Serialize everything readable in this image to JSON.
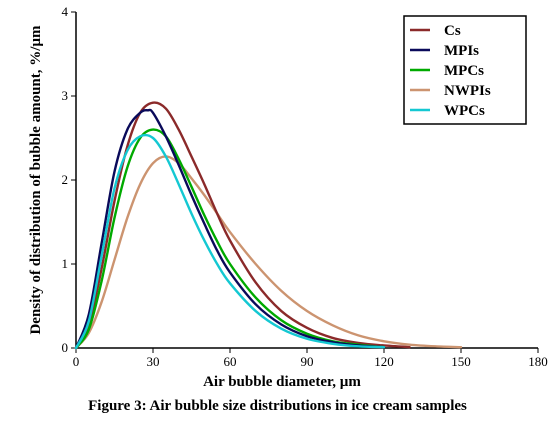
{
  "caption": "Figure 3: Air bubble size distributions in ice cream samples",
  "chart_data": {
    "type": "line",
    "xlabel": "Air bubble diameter, µm",
    "ylabel": "Density of distribution of bubble amount, %/µm",
    "xlim": [
      0,
      180
    ],
    "ylim": [
      0,
      4
    ],
    "xticks": [
      0,
      30,
      60,
      90,
      120,
      150,
      180
    ],
    "yticks": [
      0,
      1,
      2,
      3,
      4
    ],
    "legend_position": "top-right",
    "grid": false,
    "series": [
      {
        "name": "Cs",
        "color": "#8b2a2a",
        "x": [
          0,
          5,
          10,
          15,
          20,
          25,
          30,
          35,
          40,
          45,
          50,
          55,
          60,
          70,
          80,
          90,
          100,
          110,
          120,
          130
        ],
        "y": [
          0,
          0.28,
          0.95,
          1.75,
          2.4,
          2.8,
          2.92,
          2.85,
          2.6,
          2.28,
          1.95,
          1.6,
          1.28,
          0.78,
          0.44,
          0.24,
          0.12,
          0.06,
          0.03,
          0.01
        ]
      },
      {
        "name": "MPIs",
        "color": "#0a0a5a",
        "x": [
          0,
          5,
          10,
          15,
          20,
          25,
          28,
          30,
          35,
          40,
          45,
          50,
          55,
          60,
          70,
          80,
          90,
          100,
          110,
          120
        ],
        "y": [
          0,
          0.4,
          1.25,
          2.1,
          2.6,
          2.8,
          2.83,
          2.8,
          2.52,
          2.18,
          1.82,
          1.48,
          1.16,
          0.9,
          0.52,
          0.28,
          0.14,
          0.07,
          0.03,
          0.01
        ]
      },
      {
        "name": "MPCs",
        "color": "#00aa00",
        "x": [
          0,
          5,
          10,
          15,
          20,
          25,
          30,
          35,
          40,
          45,
          50,
          55,
          60,
          70,
          80,
          90,
          100,
          110,
          120
        ],
        "y": [
          0,
          0.22,
          0.8,
          1.55,
          2.15,
          2.5,
          2.6,
          2.52,
          2.25,
          1.92,
          1.58,
          1.27,
          1.0,
          0.6,
          0.33,
          0.17,
          0.08,
          0.04,
          0.01
        ]
      },
      {
        "name": "NWPIs",
        "color": "#cc9470",
        "x": [
          0,
          5,
          10,
          15,
          20,
          25,
          30,
          35,
          40,
          45,
          50,
          55,
          60,
          70,
          80,
          90,
          100,
          110,
          120,
          130,
          140,
          150
        ],
        "y": [
          0,
          0.18,
          0.55,
          1.05,
          1.55,
          1.95,
          2.2,
          2.28,
          2.2,
          2.02,
          1.82,
          1.6,
          1.38,
          1.0,
          0.68,
          0.44,
          0.27,
          0.15,
          0.08,
          0.04,
          0.02,
          0.01
        ]
      },
      {
        "name": "WPCs",
        "color": "#14c8d2",
        "x": [
          0,
          5,
          10,
          15,
          20,
          25,
          30,
          35,
          40,
          45,
          50,
          55,
          60,
          70,
          80,
          90,
          100,
          110,
          120
        ],
        "y": [
          0,
          0.32,
          1.1,
          1.9,
          2.35,
          2.52,
          2.5,
          2.28,
          1.95,
          1.6,
          1.28,
          1.0,
          0.77,
          0.44,
          0.23,
          0.11,
          0.05,
          0.02,
          0.01
        ]
      }
    ]
  }
}
